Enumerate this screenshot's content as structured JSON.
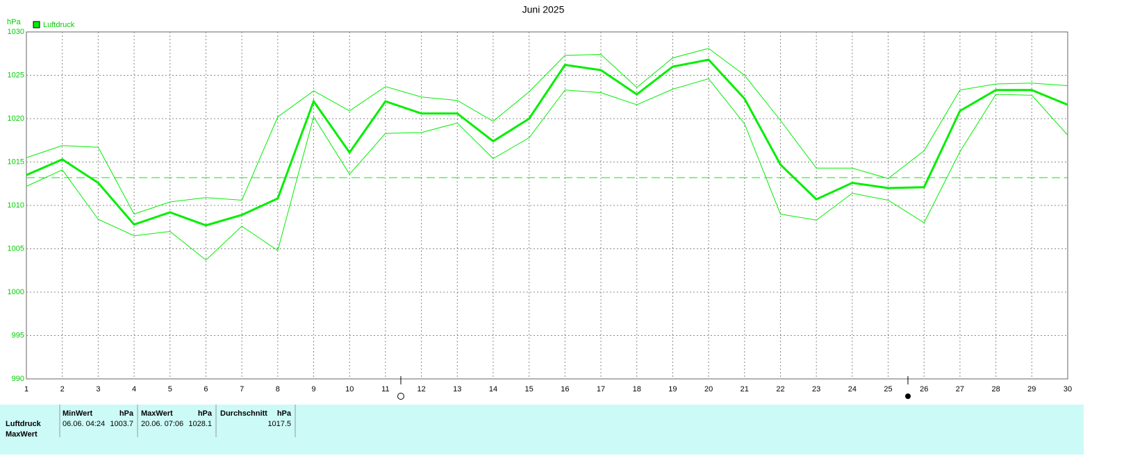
{
  "chart_data": {
    "type": "line",
    "title": "Juni 2025",
    "y_label": "hPa",
    "x": [
      1,
      2,
      3,
      4,
      5,
      6,
      7,
      8,
      9,
      10,
      11,
      12,
      13,
      14,
      15,
      16,
      17,
      18,
      19,
      20,
      21,
      22,
      23,
      24,
      25,
      26,
      27,
      28,
      29,
      30
    ],
    "xlim": [
      1,
      30
    ],
    "xticks": [
      1,
      2,
      3,
      4,
      5,
      6,
      7,
      8,
      9,
      10,
      11,
      12,
      13,
      14,
      15,
      16,
      17,
      18,
      19,
      20,
      21,
      22,
      23,
      24,
      25,
      26,
      27,
      28,
      29,
      30
    ],
    "ylim": [
      990,
      1030
    ],
    "yticks": [
      990,
      995,
      1000,
      1005,
      1010,
      1015,
      1020,
      1025,
      1030
    ],
    "grid": true,
    "reference_line": 1013.2,
    "series": [
      {
        "name": "Luftdruck",
        "color": "#00ee00",
        "values": [
          1013.5,
          1015.3,
          1012.6,
          1007.8,
          1009.2,
          1007.7,
          1008.9,
          1010.8,
          1022.0,
          1016.1,
          1022.0,
          1020.6,
          1020.6,
          1017.4,
          1020.0,
          1026.2,
          1025.6,
          1022.8,
          1026.0,
          1026.8,
          1022.3,
          1014.7,
          1010.7,
          1012.6,
          1012.0,
          1012.1,
          1020.9,
          1023.3,
          1023.3,
          1021.6
        ],
        "max": [
          1015.5,
          1016.9,
          1016.7,
          1009.0,
          1010.4,
          1010.9,
          1010.6,
          1020.2,
          1023.2,
          1020.9,
          1023.7,
          1022.5,
          1022.1,
          1019.7,
          1023.1,
          1027.3,
          1027.4,
          1023.6,
          1027.0,
          1028.1,
          1025.0,
          1019.8,
          1014.3,
          1014.3,
          1013.1,
          1016.3,
          1023.3,
          1024.0,
          1024.1,
          1023.8
        ],
        "min": [
          1012.2,
          1014.1,
          1008.4,
          1006.5,
          1007.0,
          1003.7,
          1007.6,
          1004.8,
          1020.2,
          1013.6,
          1018.3,
          1018.4,
          1019.5,
          1015.4,
          1017.8,
          1023.3,
          1023.0,
          1021.6,
          1023.4,
          1024.6,
          1019.4,
          1009.0,
          1008.3,
          1011.4,
          1010.6,
          1008.0,
          1016.2,
          1022.8,
          1022.7,
          1018.1
        ]
      }
    ]
  },
  "stats_table": {
    "headers": [
      [
        "MinWert",
        "hPa"
      ],
      [
        "MaxWert",
        "hPa"
      ],
      [
        "Durchschnitt",
        "hPa"
      ]
    ],
    "rows": [
      [
        "Luftdruck",
        "06.06.  04:24",
        "1003.7",
        "20.06.  07:06",
        "1028.1",
        "1017.5"
      ],
      [
        "MaxWert"
      ]
    ]
  }
}
